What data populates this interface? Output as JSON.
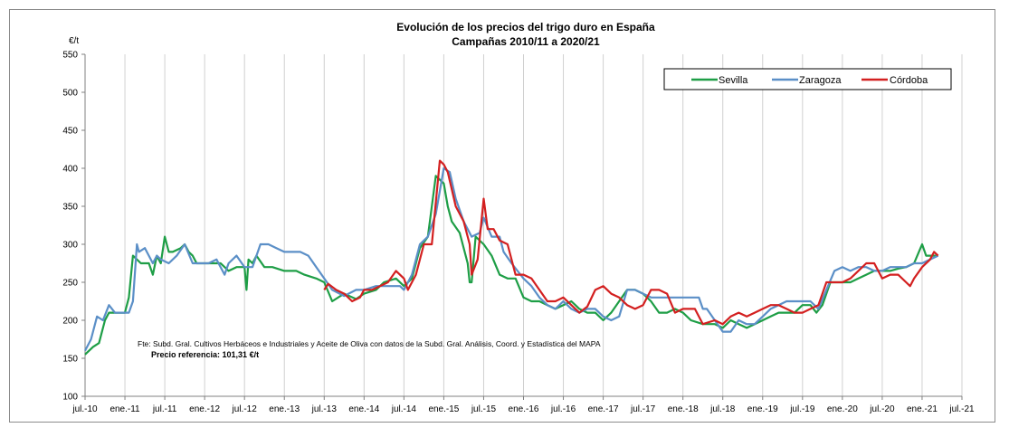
{
  "chart_data": {
    "type": "line",
    "title": "Evolución de los precios del trigo duro en España",
    "subtitle": "Campañas 2010/11 a 2020/21",
    "ylabel": "€/t",
    "xlabel": "",
    "ylim": [
      100,
      550
    ],
    "yticks": [
      100,
      150,
      200,
      250,
      300,
      350,
      400,
      450,
      500,
      550
    ],
    "xlim": [
      0,
      22
    ],
    "xtick_labels": [
      "jul.-10",
      "ene.-11",
      "jul.-11",
      "ene.-12",
      "jul.-12",
      "ene.-13",
      "jul.-13",
      "ene.-14",
      "jul.-14",
      "ene.-15",
      "jul.-15",
      "ene.-16",
      "jul.-16",
      "ene.-17",
      "jul.-17",
      "ene.-18",
      "jul.-18",
      "ene.-19",
      "jul.-19",
      "ene.-20",
      "jul.-20",
      "ene.-21",
      "jul.-21"
    ],
    "grid": "vertical",
    "legend_position": "top-right",
    "source_note": "Fte: Subd. Gral. Cultivos Herbáceos e Industriales y Aceite de Oliva con datos de la Subd. Gral. Análisis, Coord. y Estadística del MAPA",
    "reference_note": "Precio referencia: 101,31 €/t",
    "series": [
      {
        "name": "Sevilla",
        "color": "#1e9e46",
        "points": [
          [
            0,
            155
          ],
          [
            0.2,
            165
          ],
          [
            0.35,
            170
          ],
          [
            0.5,
            200
          ],
          [
            0.6,
            210
          ],
          [
            0.8,
            210
          ],
          [
            1,
            210
          ],
          [
            1.1,
            230
          ],
          [
            1.2,
            285
          ],
          [
            1.4,
            275
          ],
          [
            1.6,
            275
          ],
          [
            1.7,
            260
          ],
          [
            1.8,
            285
          ],
          [
            1.9,
            275
          ],
          [
            2,
            310
          ],
          [
            2.1,
            290
          ],
          [
            2.2,
            290
          ],
          [
            2.4,
            295
          ],
          [
            2.5,
            300
          ],
          [
            2.6,
            290
          ],
          [
            2.7,
            285
          ],
          [
            2.8,
            275
          ],
          [
            3,
            275
          ],
          [
            3.2,
            275
          ],
          [
            3.4,
            275
          ],
          [
            3.5,
            270
          ],
          [
            3.6,
            265
          ],
          [
            3.8,
            270
          ],
          [
            4,
            270
          ],
          [
            4.05,
            240
          ],
          [
            4.1,
            280
          ],
          [
            4.2,
            275
          ],
          [
            4.3,
            285
          ],
          [
            4.5,
            270
          ],
          [
            4.7,
            270
          ],
          [
            5,
            265
          ],
          [
            5.3,
            265
          ],
          [
            5.5,
            260
          ],
          [
            5.8,
            255
          ],
          [
            6,
            250
          ],
          [
            6.2,
            225
          ],
          [
            6.5,
            235
          ],
          [
            6.8,
            228
          ],
          [
            7,
            235
          ],
          [
            7.3,
            240
          ],
          [
            7.5,
            250
          ],
          [
            7.8,
            255
          ],
          [
            8,
            245
          ],
          [
            8.2,
            255
          ],
          [
            8.4,
            295
          ],
          [
            8.6,
            310
          ],
          [
            8.8,
            390
          ],
          [
            9,
            380
          ],
          [
            9.1,
            350
          ],
          [
            9.2,
            330
          ],
          [
            9.4,
            315
          ],
          [
            9.6,
            275
          ],
          [
            9.65,
            250
          ],
          [
            9.7,
            250
          ],
          [
            9.8,
            310
          ],
          [
            10,
            300
          ],
          [
            10.2,
            285
          ],
          [
            10.4,
            260
          ],
          [
            10.6,
            255
          ],
          [
            10.8,
            255
          ],
          [
            11,
            230
          ],
          [
            11.2,
            225
          ],
          [
            11.4,
            225
          ],
          [
            11.6,
            220
          ],
          [
            11.8,
            215
          ],
          [
            12,
            220
          ],
          [
            12.2,
            225
          ],
          [
            12.4,
            215
          ],
          [
            12.6,
            210
          ],
          [
            12.8,
            210
          ],
          [
            13,
            200
          ],
          [
            13.2,
            210
          ],
          [
            13.4,
            225
          ],
          [
            13.6,
            240
          ],
          [
            13.8,
            240
          ],
          [
            14,
            235
          ],
          [
            14.2,
            225
          ],
          [
            14.4,
            210
          ],
          [
            14.6,
            210
          ],
          [
            14.8,
            215
          ],
          [
            15,
            210
          ],
          [
            15.2,
            200
          ],
          [
            15.5,
            195
          ],
          [
            15.8,
            195
          ],
          [
            16,
            190
          ],
          [
            16.2,
            200
          ],
          [
            16.4,
            195
          ],
          [
            16.6,
            190
          ],
          [
            16.8,
            195
          ],
          [
            17,
            200
          ],
          [
            17.2,
            205
          ],
          [
            17.4,
            210
          ],
          [
            17.6,
            210
          ],
          [
            17.8,
            210
          ],
          [
            18,
            220
          ],
          [
            18.2,
            220
          ],
          [
            18.35,
            210
          ],
          [
            18.5,
            220
          ],
          [
            18.7,
            250
          ],
          [
            18.9,
            250
          ],
          [
            19,
            250
          ],
          [
            19.2,
            250
          ],
          [
            19.4,
            255
          ],
          [
            19.6,
            260
          ],
          [
            19.8,
            265
          ],
          [
            20,
            265
          ],
          [
            20.2,
            265
          ],
          [
            20.4,
            268
          ],
          [
            20.6,
            270
          ],
          [
            20.8,
            275
          ],
          [
            21,
            300
          ],
          [
            21.1,
            285
          ],
          [
            21.2,
            285
          ],
          [
            21.4,
            285
          ]
        ]
      },
      {
        "name": "Zaragoza",
        "color": "#5b8fc7",
        "points": [
          [
            0,
            160
          ],
          [
            0.15,
            175
          ],
          [
            0.3,
            205
          ],
          [
            0.45,
            200
          ],
          [
            0.6,
            220
          ],
          [
            0.75,
            210
          ],
          [
            0.9,
            210
          ],
          [
            1.1,
            210
          ],
          [
            1.2,
            225
          ],
          [
            1.3,
            300
          ],
          [
            1.35,
            290
          ],
          [
            1.5,
            295
          ],
          [
            1.7,
            275
          ],
          [
            1.8,
            285
          ],
          [
            1.9,
            280
          ],
          [
            2.1,
            275
          ],
          [
            2.3,
            285
          ],
          [
            2.5,
            300
          ],
          [
            2.7,
            275
          ],
          [
            2.9,
            275
          ],
          [
            3.1,
            275
          ],
          [
            3.3,
            280
          ],
          [
            3.5,
            260
          ],
          [
            3.6,
            275
          ],
          [
            3.8,
            285
          ],
          [
            4,
            270
          ],
          [
            4.2,
            270
          ],
          [
            4.4,
            300
          ],
          [
            4.6,
            300
          ],
          [
            4.8,
            295
          ],
          [
            5,
            290
          ],
          [
            5.2,
            290
          ],
          [
            5.4,
            290
          ],
          [
            5.6,
            285
          ],
          [
            5.8,
            270
          ],
          [
            6,
            255
          ],
          [
            6.2,
            240
          ],
          [
            6.5,
            232
          ],
          [
            6.8,
            240
          ],
          [
            7,
            240
          ],
          [
            7.3,
            245
          ],
          [
            7.6,
            245
          ],
          [
            7.9,
            245
          ],
          [
            8,
            240
          ],
          [
            8.2,
            260
          ],
          [
            8.4,
            300
          ],
          [
            8.6,
            310
          ],
          [
            8.8,
            340
          ],
          [
            9,
            400
          ],
          [
            9.15,
            395
          ],
          [
            9.3,
            360
          ],
          [
            9.5,
            330
          ],
          [
            9.7,
            310
          ],
          [
            9.9,
            315
          ],
          [
            10,
            335
          ],
          [
            10.2,
            310
          ],
          [
            10.4,
            310
          ],
          [
            10.5,
            290
          ],
          [
            10.7,
            275
          ],
          [
            11,
            255
          ],
          [
            11.2,
            245
          ],
          [
            11.4,
            230
          ],
          [
            11.6,
            220
          ],
          [
            11.8,
            215
          ],
          [
            12,
            225
          ],
          [
            12.2,
            215
          ],
          [
            12.4,
            210
          ],
          [
            12.6,
            215
          ],
          [
            12.8,
            215
          ],
          [
            13,
            205
          ],
          [
            13.2,
            200
          ],
          [
            13.4,
            205
          ],
          [
            13.6,
            240
          ],
          [
            13.8,
            240
          ],
          [
            14,
            235
          ],
          [
            14.2,
            230
          ],
          [
            14.4,
            230
          ],
          [
            14.6,
            230
          ],
          [
            14.8,
            230
          ],
          [
            15,
            230
          ],
          [
            15.2,
            230
          ],
          [
            15.4,
            230
          ],
          [
            15.5,
            215
          ],
          [
            15.6,
            215
          ],
          [
            16,
            185
          ],
          [
            16.2,
            185
          ],
          [
            16.4,
            200
          ],
          [
            16.6,
            195
          ],
          [
            16.8,
            195
          ],
          [
            17,
            205
          ],
          [
            17.2,
            215
          ],
          [
            17.4,
            220
          ],
          [
            17.6,
            225
          ],
          [
            17.8,
            225
          ],
          [
            18,
            225
          ],
          [
            18.2,
            225
          ],
          [
            18.4,
            215
          ],
          [
            18.6,
            240
          ],
          [
            18.8,
            265
          ],
          [
            19,
            270
          ],
          [
            19.2,
            265
          ],
          [
            19.4,
            270
          ],
          [
            19.6,
            270
          ],
          [
            19.8,
            265
          ],
          [
            20,
            265
          ],
          [
            20.2,
            270
          ],
          [
            20.4,
            270
          ],
          [
            20.6,
            270
          ],
          [
            20.8,
            275
          ],
          [
            21,
            275
          ],
          [
            21.2,
            280
          ],
          [
            21.4,
            285
          ]
        ]
      },
      {
        "name": "Córdoba",
        "color": "#d32020",
        "points": [
          [
            6,
            240
          ],
          [
            6.1,
            248
          ],
          [
            6.3,
            240
          ],
          [
            6.5,
            235
          ],
          [
            6.7,
            225
          ],
          [
            6.9,
            230
          ],
          [
            7,
            240
          ],
          [
            7.2,
            240
          ],
          [
            7.4,
            245
          ],
          [
            7.6,
            250
          ],
          [
            7.8,
            265
          ],
          [
            8,
            255
          ],
          [
            8.1,
            240
          ],
          [
            8.3,
            260
          ],
          [
            8.5,
            300
          ],
          [
            8.7,
            300
          ],
          [
            8.9,
            410
          ],
          [
            9,
            405
          ],
          [
            9.1,
            395
          ],
          [
            9.3,
            350
          ],
          [
            9.5,
            330
          ],
          [
            9.65,
            300
          ],
          [
            9.7,
            260
          ],
          [
            9.85,
            280
          ],
          [
            10,
            360
          ],
          [
            10.1,
            320
          ],
          [
            10.25,
            320
          ],
          [
            10.4,
            305
          ],
          [
            10.6,
            300
          ],
          [
            10.8,
            260
          ],
          [
            11,
            260
          ],
          [
            11.2,
            255
          ],
          [
            11.4,
            240
          ],
          [
            11.6,
            225
          ],
          [
            11.8,
            225
          ],
          [
            12,
            230
          ],
          [
            12.2,
            220
          ],
          [
            12.4,
            210
          ],
          [
            12.6,
            218
          ],
          [
            12.8,
            240
          ],
          [
            13,
            245
          ],
          [
            13.2,
            235
          ],
          [
            13.4,
            230
          ],
          [
            13.6,
            220
          ],
          [
            13.8,
            215
          ],
          [
            14,
            220
          ],
          [
            14.2,
            240
          ],
          [
            14.4,
            240
          ],
          [
            14.6,
            235
          ],
          [
            14.8,
            210
          ],
          [
            15,
            215
          ],
          [
            15.3,
            215
          ],
          [
            15.5,
            195
          ],
          [
            15.8,
            200
          ],
          [
            16,
            195
          ],
          [
            16.2,
            205
          ],
          [
            16.4,
            210
          ],
          [
            16.6,
            205
          ],
          [
            16.8,
            210
          ],
          [
            17,
            215
          ],
          [
            17.2,
            220
          ],
          [
            17.4,
            220
          ],
          [
            17.6,
            215
          ],
          [
            17.8,
            210
          ],
          [
            18,
            210
          ],
          [
            18.2,
            215
          ],
          [
            18.4,
            220
          ],
          [
            18.6,
            250
          ],
          [
            18.8,
            250
          ],
          [
            19,
            250
          ],
          [
            19.2,
            255
          ],
          [
            19.4,
            265
          ],
          [
            19.6,
            275
          ],
          [
            19.8,
            275
          ],
          [
            20,
            255
          ],
          [
            20.2,
            260
          ],
          [
            20.4,
            260
          ],
          [
            20.6,
            250
          ],
          [
            20.7,
            245
          ],
          [
            20.8,
            255
          ],
          [
            21,
            270
          ],
          [
            21.2,
            280
          ],
          [
            21.3,
            290
          ],
          [
            21.4,
            285
          ]
        ]
      }
    ]
  }
}
